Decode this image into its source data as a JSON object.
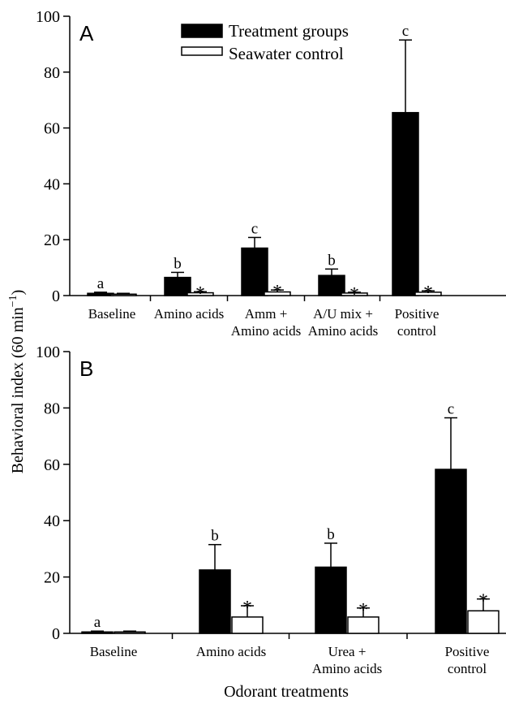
{
  "figure": {
    "ylabel": "Behavioral index (60 min",
    "ylabel_sup": "−1",
    "ylabel_close": ")",
    "xlabel": "Odorant treatments"
  },
  "legend": {
    "items": [
      {
        "label": "Treatment groups",
        "color": "#000000"
      },
      {
        "label": "Seawater control",
        "color": "#ffffff"
      }
    ]
  },
  "chart_data": [
    {
      "type": "bar",
      "panel": "A",
      "categories": [
        [
          "Baseline"
        ],
        [
          "Amino acids"
        ],
        [
          "Amm +",
          "Amino acids"
        ],
        [
          "A/U mix +",
          "Amino acids"
        ],
        [
          "Positive",
          "control"
        ]
      ],
      "ylim": [
        0,
        100
      ],
      "yticks": [
        0,
        20,
        40,
        60,
        80,
        100
      ],
      "series": [
        {
          "name": "Treatment groups",
          "values": [
            0.8,
            6.5,
            17,
            7.2,
            65.5
          ],
          "errors": [
            0.4,
            1.8,
            3.8,
            2.3,
            26
          ],
          "sig": [
            "a",
            "b",
            "c",
            "b",
            "c"
          ]
        },
        {
          "name": "Seawater control",
          "values": [
            0.5,
            1,
            1.3,
            0.9,
            1.2
          ],
          "errors": [
            0.3,
            0.4,
            0.7,
            0.3,
            0.5
          ],
          "sig": [
            "",
            "*",
            "*",
            "*",
            "*"
          ]
        }
      ]
    },
    {
      "type": "bar",
      "panel": "B",
      "categories": [
        [
          "Baseline"
        ],
        [
          "Amino acids"
        ],
        [
          "Urea +",
          "Amino acids"
        ],
        [
          "Positive",
          "control"
        ]
      ],
      "ylim": [
        0,
        100
      ],
      "yticks": [
        0,
        20,
        40,
        60,
        80,
        100
      ],
      "series": [
        {
          "name": "Treatment groups",
          "values": [
            0.5,
            22.5,
            23.5,
            58.2
          ],
          "errors": [
            0.3,
            9,
            8.5,
            18.3
          ],
          "sig": [
            "a",
            "b",
            "b",
            "c"
          ]
        },
        {
          "name": "Seawater control",
          "values": [
            0.5,
            5.8,
            5.8,
            8
          ],
          "errors": [
            0.3,
            4,
            3.2,
            4.2
          ],
          "sig": [
            "",
            "*",
            "*",
            "*"
          ]
        }
      ]
    }
  ]
}
